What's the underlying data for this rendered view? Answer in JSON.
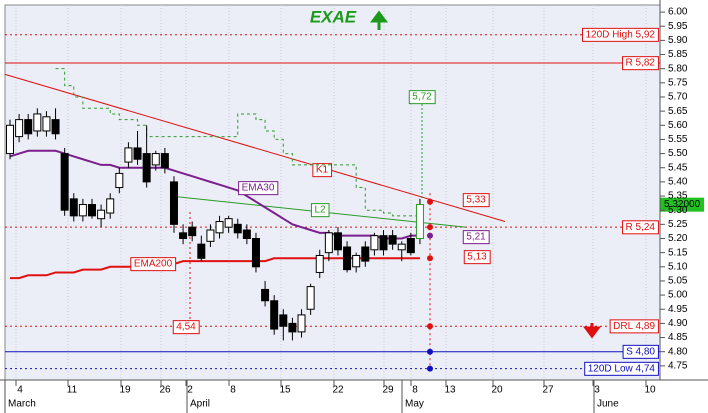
{
  "chart_data": {
    "type": "candlestick",
    "title": "EXAE",
    "title_color": "#1a9a1a",
    "plot_color": "#eceef7",
    "grid": true,
    "ylim": [
      4.7,
      6.025
    ],
    "yticks": [
      {
        "value": 4.75,
        "label": "4.75"
      },
      {
        "value": 4.8,
        "label": "4.80"
      },
      {
        "value": 4.85,
        "label": "4.85"
      },
      {
        "value": 4.9,
        "label": "4.90"
      },
      {
        "value": 4.95,
        "label": "4.95"
      },
      {
        "value": 5.0,
        "label": "5.00"
      },
      {
        "value": 5.05,
        "label": "5.05"
      },
      {
        "value": 5.1,
        "label": "5.10"
      },
      {
        "value": 5.15,
        "label": "5.15"
      },
      {
        "value": 5.2,
        "label": "5.20"
      },
      {
        "value": 5.25,
        "label": "5.25"
      },
      {
        "value": 5.3,
        "label": "5.30"
      },
      {
        "value": 5.35,
        "label": "5.35"
      },
      {
        "value": 5.4,
        "label": "5.40"
      },
      {
        "value": 5.45,
        "label": "5.45"
      },
      {
        "value": 5.5,
        "label": "5.50"
      },
      {
        "value": 5.55,
        "label": "5.55"
      },
      {
        "value": 5.6,
        "label": "5.60"
      },
      {
        "value": 5.65,
        "label": "5.65"
      },
      {
        "value": 5.7,
        "label": "5.70"
      },
      {
        "value": 5.75,
        "label": "5.75"
      },
      {
        "value": 5.8,
        "label": "5.80"
      },
      {
        "value": 5.85,
        "label": "5.85"
      },
      {
        "value": 5.9,
        "label": "5.90"
      },
      {
        "value": 5.95,
        "label": "5.95"
      },
      {
        "value": 6.0,
        "label": "6.00"
      }
    ],
    "categories": [
      "4",
      "11",
      "19",
      "26",
      "2",
      "8",
      "15",
      "22",
      "29",
      "8",
      "13",
      "20",
      "27",
      "3",
      "10"
    ],
    "months": [
      "March",
      "April",
      "May",
      "June"
    ],
    "candles": {
      "open": [
        5.5,
        5.56,
        5.62,
        5.58,
        5.58,
        5.62,
        5.5,
        5.34,
        5.28,
        5.32,
        5.27,
        5.29,
        5.38,
        5.47,
        5.52,
        5.5,
        5.46,
        5.5,
        5.4,
        5.22,
        5.24,
        5.18,
        5.19,
        5.22,
        5.24,
        5.25,
        5.23,
        5.2,
        5.02,
        4.98,
        4.93,
        4.9,
        4.87,
        4.95,
        5.08,
        5.15,
        5.22,
        5.17,
        5.1,
        5.17,
        5.16,
        5.21,
        5.21,
        5.16,
        5.2,
        5.2
      ],
      "high": [
        5.62,
        5.64,
        5.64,
        5.66,
        5.65,
        5.66,
        5.52,
        5.36,
        5.34,
        5.34,
        5.32,
        5.36,
        5.45,
        5.54,
        5.58,
        5.6,
        5.51,
        5.52,
        5.42,
        5.25,
        5.26,
        5.21,
        5.25,
        5.28,
        5.28,
        5.27,
        5.25,
        5.22,
        5.05,
        5.0,
        4.95,
        4.92,
        4.95,
        5.04,
        5.16,
        5.23,
        5.24,
        5.19,
        5.15,
        5.19,
        5.22,
        5.23,
        5.23,
        5.19,
        5.22,
        5.34
      ],
      "low": [
        5.48,
        5.54,
        5.55,
        5.56,
        5.56,
        5.55,
        5.28,
        5.26,
        5.26,
        5.27,
        5.24,
        5.27,
        5.36,
        5.45,
        5.46,
        5.38,
        5.44,
        5.43,
        5.22,
        5.18,
        5.19,
        5.12,
        5.17,
        5.2,
        5.22,
        5.2,
        5.18,
        5.08,
        4.96,
        4.86,
        4.84,
        4.84,
        4.85,
        4.93,
        5.06,
        5.12,
        5.14,
        5.08,
        5.08,
        5.1,
        5.14,
        5.14,
        5.16,
        5.12,
        5.14,
        5.18
      ],
      "close": [
        5.6,
        5.62,
        5.57,
        5.64,
        5.63,
        5.57,
        5.3,
        5.28,
        5.32,
        5.28,
        5.3,
        5.34,
        5.43,
        5.52,
        5.48,
        5.4,
        5.5,
        5.45,
        5.25,
        5.2,
        5.21,
        5.13,
        5.23,
        5.26,
        5.27,
        5.22,
        5.2,
        5.1,
        4.98,
        4.88,
        4.89,
        4.87,
        4.93,
        5.03,
        5.14,
        5.22,
        5.16,
        5.09,
        5.14,
        5.12,
        5.21,
        5.16,
        5.18,
        5.18,
        5.15,
        5.32
      ]
    },
    "last_price": {
      "value": 5.32,
      "label": "5.32000",
      "color": "#22c022"
    },
    "indicators": [
      {
        "name": "EMA30",
        "color": "#7a1f8c",
        "dash": false,
        "values": [
          5.49,
          5.5,
          5.51,
          5.51,
          5.51,
          5.51,
          5.5,
          5.49,
          5.48,
          5.47,
          5.46,
          5.46,
          5.45,
          5.45,
          5.45,
          5.45,
          5.45,
          5.45,
          5.44,
          5.43,
          5.42,
          5.41,
          5.4,
          5.39,
          5.38,
          5.37,
          5.35,
          5.33,
          5.31,
          5.29,
          5.27,
          5.25,
          5.24,
          5.23,
          5.22,
          5.22,
          5.21,
          5.21,
          5.21,
          5.21,
          5.21,
          5.2,
          5.2,
          5.2,
          5.21,
          5.21
        ]
      },
      {
        "name": "EMA200",
        "color": "#e01010",
        "dash": false,
        "values": [
          5.06,
          5.06,
          5.07,
          5.07,
          5.07,
          5.08,
          5.08,
          5.08,
          5.09,
          5.09,
          5.09,
          5.1,
          5.1,
          5.1,
          5.1,
          5.11,
          5.11,
          5.11,
          5.11,
          5.12,
          5.12,
          5.12,
          5.12,
          5.12,
          5.12,
          5.12,
          5.12,
          5.12,
          5.12,
          5.13,
          5.13,
          5.13,
          5.13,
          5.13,
          5.13,
          5.13,
          5.13,
          5.13,
          5.13,
          5.13,
          5.13,
          5.13,
          5.13,
          5.13,
          5.13,
          5.13
        ]
      },
      {
        "color": "#2a9a2a",
        "dash": true,
        "values": [
          null,
          null,
          null,
          null,
          null,
          5.8,
          5.74,
          5.7,
          5.66,
          5.66,
          5.66,
          5.64,
          5.62,
          5.62,
          5.6,
          5.56,
          5.56,
          5.56,
          5.56,
          5.56,
          5.56,
          5.56,
          5.56,
          5.56,
          5.56,
          5.64,
          5.64,
          5.62,
          5.58,
          5.55,
          5.5,
          5.46,
          5.46,
          5.46,
          5.46,
          5.46,
          5.46,
          5.46,
          5.38,
          5.3,
          5.3,
          5.29,
          5.28,
          5.28,
          5.28,
          5.25
        ]
      }
    ],
    "trendlines": [
      {
        "name": "K1",
        "color": "#e01010",
        "values": [
          5.78,
          5.26
        ]
      },
      {
        "name": "L2",
        "color": "#2a9a2a",
        "values": [
          5.35,
          5.24
        ]
      }
    ],
    "levels": [
      {
        "label": "120D High 5,92",
        "value": 5.92,
        "color": "#e01010",
        "style": "dotted"
      },
      {
        "label": "R 5,82",
        "value": 5.82,
        "color": "#e01010",
        "style": "solid"
      },
      {
        "label": "R 5,24",
        "value": 5.24,
        "color": "#e01010",
        "style": "dotted"
      },
      {
        "label": "DRL 4,89",
        "value": 4.89,
        "color": "#e01010",
        "style": "dotted"
      },
      {
        "label": "S 4,80",
        "value": 4.8,
        "color": "#1010c0",
        "style": "solid"
      },
      {
        "label": "120D Low 4,74",
        "value": 4.74,
        "color": "#1010c0",
        "style": "dotted"
      }
    ],
    "projection_points": {
      "values": [
        5.33,
        5.24,
        5.21,
        5.13,
        4.89,
        4.8,
        4.74
      ],
      "colors": [
        "#e01010",
        "#e01010",
        "#7a1f8c",
        "#e01010",
        "#e01010",
        "#1010c0",
        "#1010c0"
      ]
    },
    "callouts": [
      {
        "label": "5,72",
        "color": "#2a9a2a"
      },
      {
        "label": "5,33",
        "color": "#e01010"
      },
      {
        "label": "5,21",
        "color": "#7a1f8c"
      },
      {
        "label": "5,13",
        "color": "#e01010"
      },
      {
        "label": "4,54",
        "color": "#e01010"
      }
    ]
  }
}
